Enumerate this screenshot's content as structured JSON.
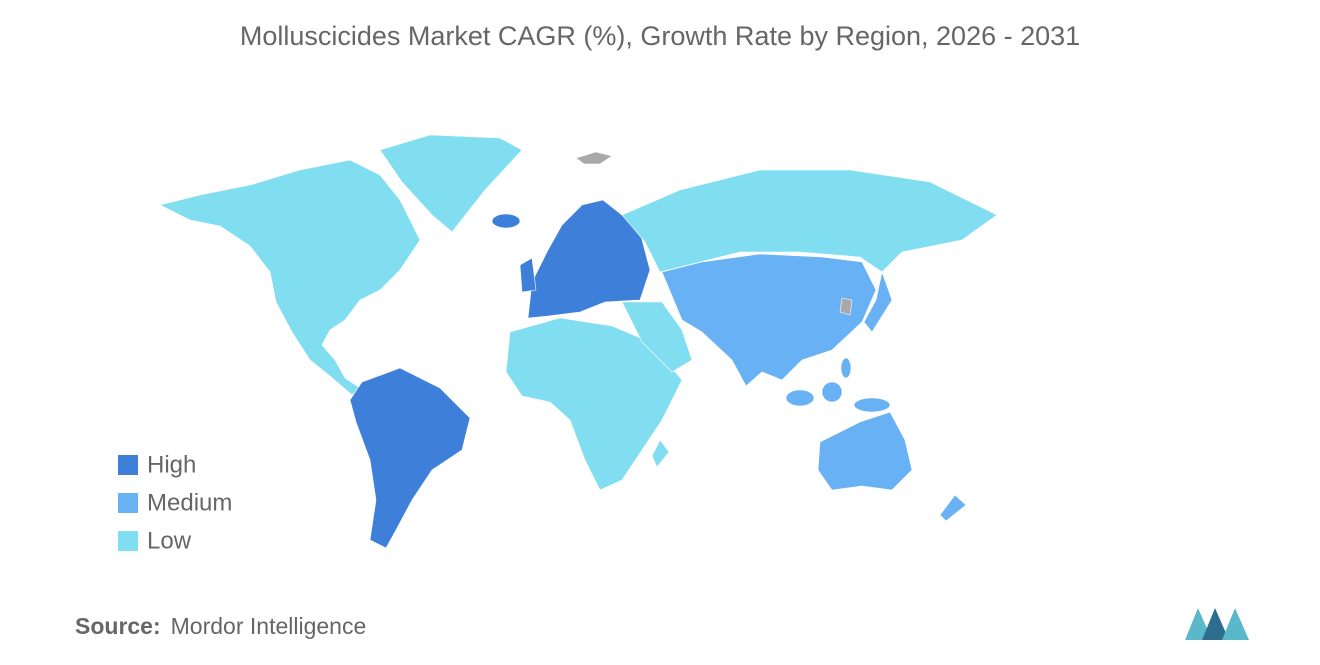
{
  "title": "Molluscicides Market CAGR (%), Growth Rate by Region, 2026 - 2031",
  "legend": [
    {
      "label": "High",
      "color": "#3d7fd9"
    },
    {
      "label": "Medium",
      "color": "#67b1f4"
    },
    {
      "label": "Low",
      "color": "#80def0"
    }
  ],
  "no_data_color": "#a9a9a9",
  "source": {
    "label": "Source:",
    "text": "Mordor Intelligence"
  }
}
